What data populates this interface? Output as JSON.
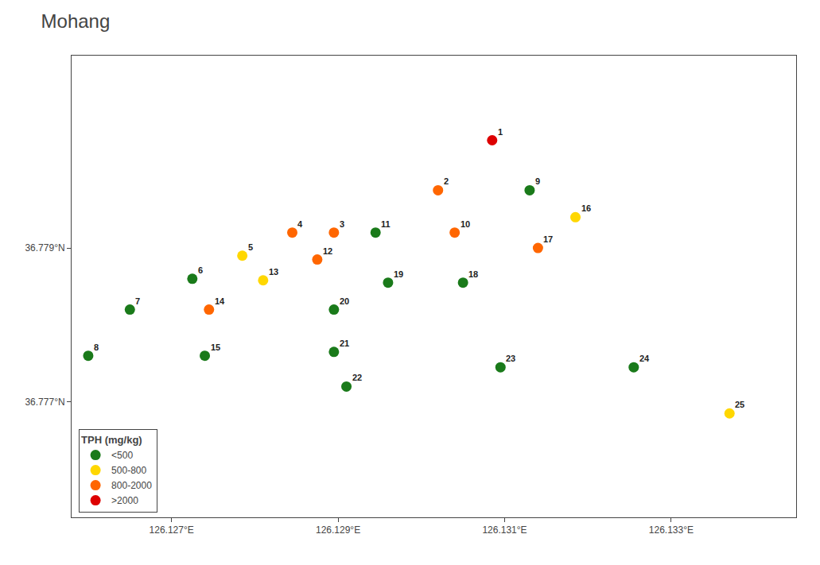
{
  "chart_data": {
    "type": "scatter",
    "title": "Mohang",
    "xlim": [
      126.1258,
      126.1345
    ],
    "ylim": [
      36.7755,
      36.7815
    ],
    "xticks": [
      {
        "value": 126.127,
        "label": "126.127°E"
      },
      {
        "value": 126.129,
        "label": "126.129°E"
      },
      {
        "value": 126.131,
        "label": "126.131°E"
      },
      {
        "value": 126.133,
        "label": "126.133°E"
      }
    ],
    "yticks": [
      {
        "value": 36.777,
        "label": "36.777°N"
      },
      {
        "value": 36.779,
        "label": "36.779°N"
      }
    ],
    "grid": false,
    "legend": "lower left",
    "legend_title": "TPH (mg/kg)",
    "marker": "circle",
    "series": [
      {
        "name": "<500",
        "color": "#1A7A1A",
        "x": [
          126.12725,
          126.1265,
          126.126,
          126.1313,
          126.12945,
          126.1274,
          126.1305,
          126.1296,
          126.12895,
          126.12895,
          126.1291,
          126.13095,
          126.13255
        ],
        "values": [
          36.7786,
          36.7782,
          36.7776,
          36.77975,
          36.7792,
          36.7776,
          36.77855,
          36.77855,
          36.7782,
          36.77765,
          36.7772,
          36.77745,
          36.77745
        ]
      },
      {
        "name": "500-800",
        "color": "#FFD700",
        "x": [
          126.12785,
          126.1281,
          126.13185,
          126.1337
        ],
        "values": [
          36.7789,
          36.77858,
          36.7794,
          36.77685
        ]
      },
      {
        "name": "800-2000",
        "color": "#FF6600",
        "x": [
          126.1302,
          126.12895,
          126.12845,
          126.1304,
          126.12875,
          126.12745,
          126.1314
        ],
        "values": [
          36.77975,
          36.7792,
          36.7792,
          36.7792,
          36.77885,
          36.7782,
          36.779
        ]
      },
      {
        "name": ">2000",
        "color": "#DD0000",
        "x": [
          126.13085
        ],
        "values": [
          36.7804
        ]
      }
    ],
    "annotations": [
      {
        "x": 126.13085,
        "y": 36.7804,
        "text": "1"
      },
      {
        "x": 126.1302,
        "y": 36.77975,
        "text": "2"
      },
      {
        "x": 126.12895,
        "y": 36.7792,
        "text": "3"
      },
      {
        "x": 126.12845,
        "y": 36.7792,
        "text": "4"
      },
      {
        "x": 126.12785,
        "y": 36.7789,
        "text": "5"
      },
      {
        "x": 126.12725,
        "y": 36.7786,
        "text": "6"
      },
      {
        "x": 126.1265,
        "y": 36.7782,
        "text": "7"
      },
      {
        "x": 126.126,
        "y": 36.7776,
        "text": "8"
      },
      {
        "x": 126.1313,
        "y": 36.77975,
        "text": "9"
      },
      {
        "x": 126.1304,
        "y": 36.7792,
        "text": "10"
      },
      {
        "x": 126.12945,
        "y": 36.7792,
        "text": "11"
      },
      {
        "x": 126.12875,
        "y": 36.77885,
        "text": "12"
      },
      {
        "x": 126.1281,
        "y": 36.77858,
        "text": "13"
      },
      {
        "x": 126.12745,
        "y": 36.7782,
        "text": "14"
      },
      {
        "x": 126.1274,
        "y": 36.7776,
        "text": "15"
      },
      {
        "x": 126.13185,
        "y": 36.7794,
        "text": "16"
      },
      {
        "x": 126.1314,
        "y": 36.779,
        "text": "17"
      },
      {
        "x": 126.1305,
        "y": 36.77855,
        "text": "18"
      },
      {
        "x": 126.1296,
        "y": 36.77855,
        "text": "19"
      },
      {
        "x": 126.12895,
        "y": 36.7782,
        "text": "20"
      },
      {
        "x": 126.12895,
        "y": 36.77765,
        "text": "21"
      },
      {
        "x": 126.1291,
        "y": 36.7772,
        "text": "22"
      },
      {
        "x": 126.13095,
        "y": 36.77745,
        "text": "23"
      },
      {
        "x": 126.13255,
        "y": 36.77745,
        "text": "24"
      },
      {
        "x": 126.1337,
        "y": 36.77685,
        "text": "25"
      }
    ]
  }
}
